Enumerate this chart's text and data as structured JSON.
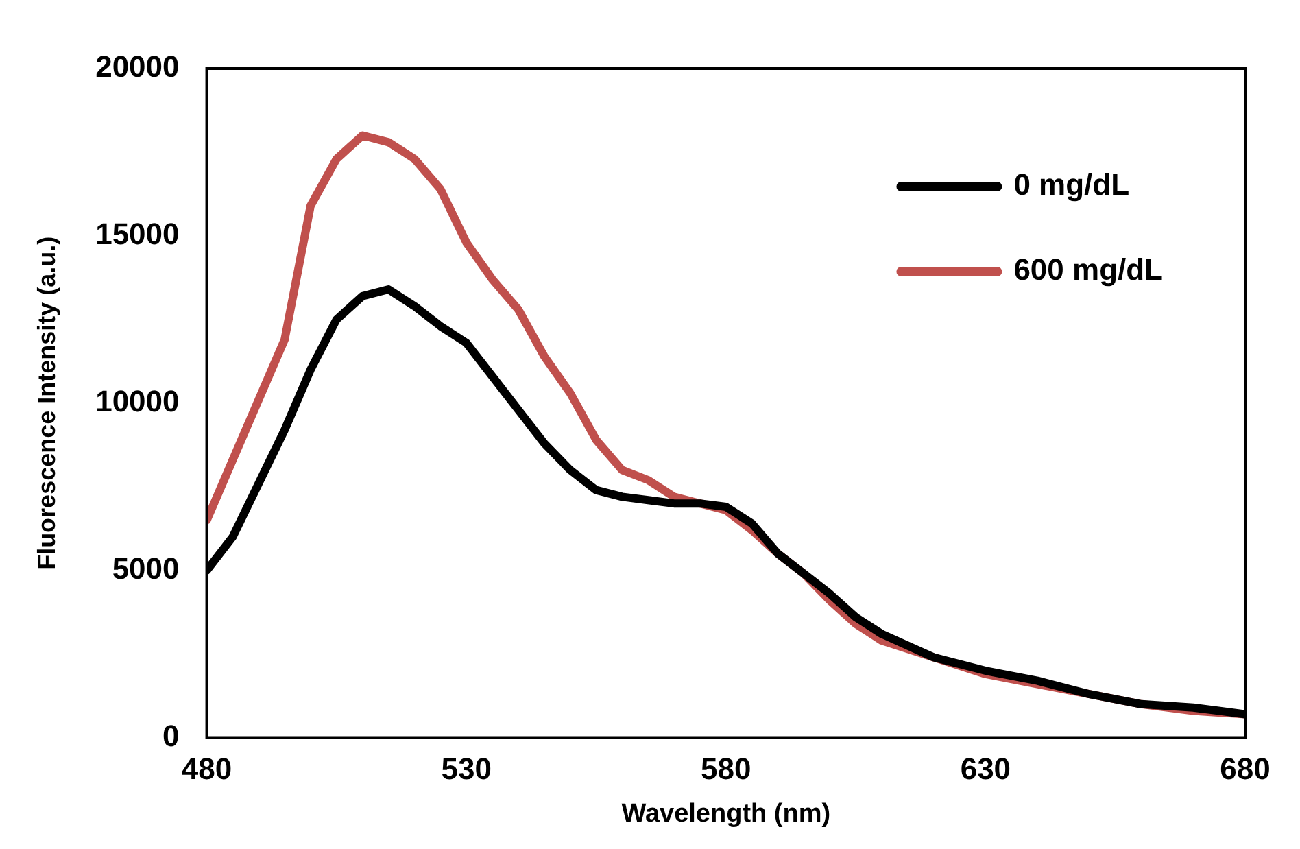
{
  "chart_data": {
    "type": "line",
    "xlabel": "Wavelength (nm)",
    "ylabel": "Fluorescence Intensity (a.u.)",
    "x": [
      480,
      485,
      490,
      495,
      500,
      505,
      510,
      515,
      520,
      525,
      530,
      535,
      540,
      545,
      550,
      555,
      560,
      565,
      570,
      575,
      580,
      585,
      590,
      595,
      600,
      605,
      610,
      620,
      630,
      640,
      650,
      660,
      670,
      680
    ],
    "series": [
      {
        "name": "0 mg/dL",
        "color": "#000000",
        "values": [
          5000,
          6000,
          7600,
          9200,
          11000,
          12500,
          13200,
          13400,
          12900,
          12300,
          11800,
          10800,
          9800,
          8800,
          8000,
          7400,
          7200,
          7100,
          7000,
          7000,
          6900,
          6400,
          5500,
          4900,
          4300,
          3600,
          3100,
          2400,
          2000,
          1700,
          1300,
          1000,
          900,
          700
        ]
      },
      {
        "name": "600 mg/dL",
        "color": "#c0504d",
        "values": [
          6500,
          8300,
          10100,
          11900,
          15900,
          17300,
          18000,
          17800,
          17300,
          16400,
          14800,
          13700,
          12800,
          11400,
          10300,
          8900,
          8000,
          7700,
          7200,
          7000,
          6800,
          6200,
          5500,
          4900,
          4100,
          3400,
          2900,
          2400,
          1900,
          1600,
          1300,
          1000,
          800,
          700
        ]
      }
    ],
    "xlim": [
      480,
      680
    ],
    "xticks": [
      480,
      530,
      580,
      630,
      680
    ],
    "ylim": [
      0,
      20000
    ],
    "yticks": [
      0,
      5000,
      10000,
      15000,
      20000
    ],
    "grid": false,
    "legend": "top right",
    "marker": "none",
    "line_style": "solid"
  }
}
